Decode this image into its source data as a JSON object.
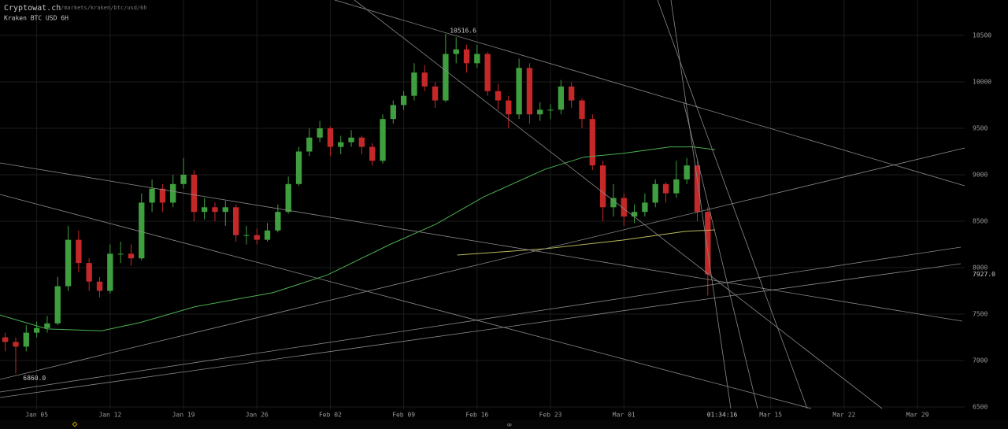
{
  "chart_data": {
    "type": "candlestick",
    "title": "Cryptowat.ch",
    "url": "/markets/kraken/btc/usd/6h",
    "subtitle": "Kraken BTC USD 6H",
    "time_label": "01:34:16",
    "up_color": "#3f9f3f",
    "down_color": "#c42828",
    "x": [
      2,
      3,
      4,
      5,
      6,
      7,
      8,
      9,
      10,
      11,
      12,
      13,
      14,
      15,
      16,
      17,
      18,
      19,
      20,
      21,
      22,
      23,
      24,
      25,
      26,
      27,
      28,
      29,
      30,
      31,
      32,
      33,
      34,
      35,
      36,
      37,
      38,
      39,
      40,
      41,
      42,
      43,
      44,
      45,
      46,
      47,
      48,
      49,
      50,
      51,
      52,
      53,
      54,
      55,
      56,
      57,
      58,
      59,
      60,
      61,
      62,
      63,
      64,
      65,
      66,
      67,
      68,
      69
    ],
    "open": [
      7250,
      7200,
      7150,
      7300,
      7350,
      7400,
      7800,
      8300,
      8050,
      7850,
      7750,
      8150,
      8150,
      8100,
      8700,
      8850,
      8700,
      8900,
      9000,
      8600,
      8650,
      8600,
      8650,
      8350,
      8350,
      8300,
      8400,
      8600,
      8900,
      9250,
      9400,
      9500,
      9300,
      9350,
      9400,
      9300,
      9150,
      9600,
      9750,
      9850,
      10100,
      9950,
      9800,
      10300,
      10350,
      10200,
      10300,
      9900,
      9800,
      9650,
      10150,
      9650,
      9700,
      9700,
      9950,
      9800,
      9600,
      9100,
      8650,
      8750,
      8550,
      8600,
      8700,
      8900,
      8800,
      8950,
      9100,
      8600
    ],
    "high": [
      7300,
      7250,
      7380,
      7420,
      7480,
      7900,
      8450,
      8400,
      8100,
      7900,
      8250,
      8280,
      8250,
      8800,
      8950,
      8900,
      9000,
      9180,
      9050,
      8750,
      8700,
      8720,
      8680,
      8450,
      8420,
      8480,
      8680,
      8980,
      9300,
      9500,
      9580,
      9520,
      9420,
      9480,
      9420,
      9340,
      9650,
      9800,
      9900,
      10200,
      10180,
      10000,
      10516.6,
      10480,
      10400,
      10400,
      10320,
      9980,
      9850,
      10250,
      10200,
      9780,
      9760,
      10020,
      10000,
      9820,
      9650,
      9150,
      8900,
      8800,
      8680,
      8800,
      8950,
      8920,
      9150,
      9180,
      9150,
      8650
    ],
    "low": [
      7100,
      6860,
      7100,
      7250,
      7300,
      7380,
      7750,
      7950,
      7750,
      7680,
      7720,
      8050,
      8020,
      8080,
      8600,
      8600,
      8650,
      8850,
      8500,
      8520,
      8500,
      8450,
      8280,
      8250,
      8250,
      8280,
      8380,
      8580,
      8880,
      9200,
      9350,
      9200,
      9220,
      9300,
      9220,
      9100,
      9120,
      9550,
      9700,
      9800,
      9900,
      9720,
      9780,
      10200,
      10100,
      10150,
      9850,
      9700,
      9500,
      9600,
      9550,
      9580,
      9600,
      9650,
      9720,
      9500,
      9050,
      8500,
      8550,
      8450,
      8480,
      8550,
      8650,
      8700,
      8750,
      8900,
      8500,
      7700
    ],
    "close": [
      7200,
      7150,
      7300,
      7350,
      7400,
      7800,
      8300,
      8050,
      7850,
      7750,
      8150,
      8150,
      8100,
      8700,
      8850,
      8700,
      8900,
      9000,
      8600,
      8650,
      8600,
      8650,
      8350,
      8350,
      8300,
      8400,
      8600,
      8900,
      9250,
      9400,
      9500,
      9300,
      9350,
      9400,
      9300,
      9150,
      9600,
      9750,
      9850,
      10100,
      9950,
      9800,
      10300,
      10350,
      10200,
      10300,
      9900,
      9800,
      9650,
      10150,
      9650,
      9700,
      9700,
      9950,
      9800,
      9600,
      9100,
      8650,
      8750,
      8550,
      8600,
      8700,
      8900,
      8800,
      8950,
      9100,
      8600,
      7927
    ],
    "series": [
      {
        "color": "#4caf50",
        "x": [
          1.5,
          6.0,
          11.2,
          14.9,
          20.1,
          27.5,
          32.7,
          38.7,
          43.1,
          47.6,
          53.5,
          57.2,
          60.9,
          65.4,
          67.6,
          69.7
        ],
        "values": [
          7490,
          7340,
          7320,
          7410,
          7580,
          7730,
          7920,
          8250,
          8470,
          8760,
          9060,
          9190,
          9230,
          9300,
          9300,
          9270
        ]
      },
      {
        "color": "#b8b85a",
        "x": [
          45.1,
          53.5,
          60.9,
          66.8,
          69.7
        ],
        "values": [
          8136,
          8203,
          8297,
          8390,
          8407
        ]
      }
    ],
    "high_marker": {
      "x": 44.4,
      "value": 10516.6,
      "label": "10516.6"
    },
    "low_marker": {
      "x": 3.4,
      "value": 6860,
      "label": "6860.0"
    },
    "last_price": {
      "value": 7927,
      "label": "7927.0"
    },
    "xlim": [
      1.5,
      93.5
    ],
    "ylim": [
      6475,
      10881
    ],
    "xticks": [
      {
        "value": 5,
        "label": "Jan 05"
      },
      {
        "value": 12,
        "label": "Jan 12"
      },
      {
        "value": 19,
        "label": "Jan 19"
      },
      {
        "value": 26,
        "label": "Jan 26"
      },
      {
        "value": 33,
        "label": "Feb 02"
      },
      {
        "value": 40,
        "label": "Feb 09"
      },
      {
        "value": 47,
        "label": "Feb 16"
      },
      {
        "value": 54,
        "label": "Feb 23"
      },
      {
        "value": 61,
        "label": "Mar 01"
      },
      {
        "value": 75,
        "label": "Mar 15"
      },
      {
        "value": 82,
        "label": "Mar 22"
      },
      {
        "value": 89,
        "label": "Mar 29"
      }
    ],
    "yticks": [
      6500,
      7000,
      7500,
      8000,
      8500,
      9000,
      9500,
      10000,
      10500
    ],
    "grid": true
  }
}
